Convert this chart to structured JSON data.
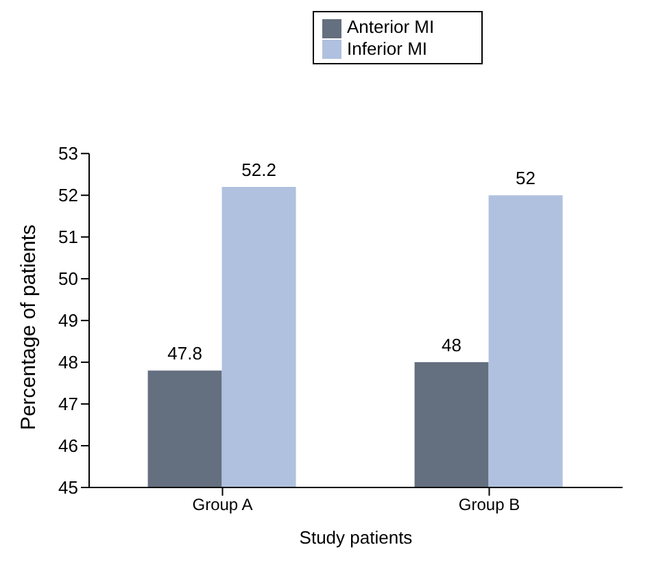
{
  "chart_data": {
    "type": "bar",
    "xlabel": "Study patients",
    "ylabel": "Percentage of patients",
    "categories": [
      "Group A",
      "Group B"
    ],
    "series": [
      {
        "name": "Anterior MI",
        "color": "#646f7f",
        "values": [
          47.8,
          48
        ]
      },
      {
        "name": "Inferior MI",
        "color": "#b0c1df",
        "values": [
          52.2,
          52
        ]
      }
    ],
    "ylim": [
      45,
      53
    ],
    "yticks": [
      45,
      46,
      47,
      48,
      49,
      50,
      51,
      52,
      53
    ],
    "data_labels": true,
    "legend": "top",
    "grid": false
  }
}
